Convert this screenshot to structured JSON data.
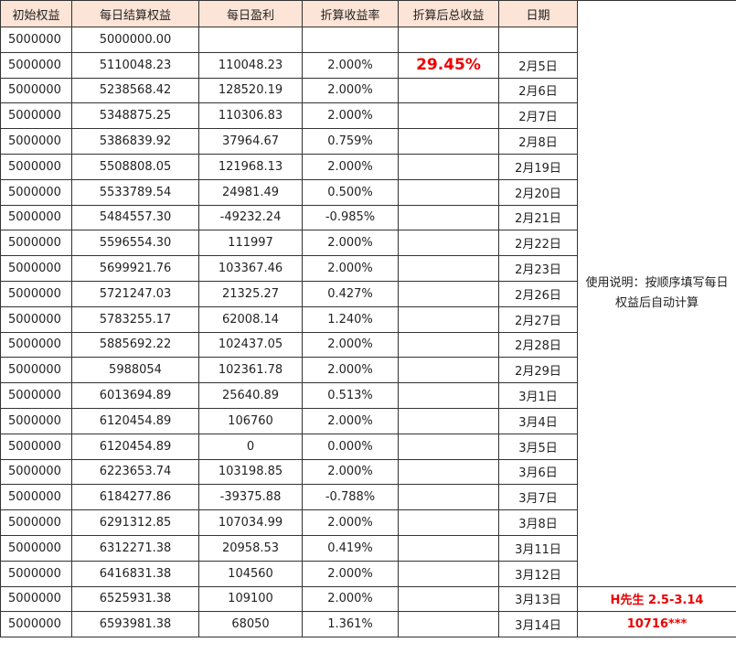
{
  "header": {
    "columns": [
      "初始权益",
      "每日结算权益",
      "每日盈利",
      "折算收益率",
      "折算后总收益",
      "日期"
    ]
  },
  "table": {
    "rows": [
      [
        "5000000",
        "5000000.00",
        null,
        null,
        null,
        null
      ],
      [
        "5000000",
        "5110048.23",
        "110048.23",
        "2.000%",
        "29.45%",
        "2月5日"
      ],
      [
        "5000000",
        "5238568.42",
        "128520.19",
        "2.000%",
        null,
        "2月6日"
      ],
      [
        "5000000",
        "5348875.25",
        "110306.83",
        "2.000%",
        null,
        "2月7日"
      ],
      [
        "5000000",
        "5386839.92",
        "37964.67",
        "0.759%",
        null,
        "2月8日"
      ],
      [
        "5000000",
        "5508808.05",
        "121968.13",
        "2.000%",
        null,
        "2月19日"
      ],
      [
        "5000000",
        "5533789.54",
        "24981.49",
        "0.500%",
        null,
        "2月20日"
      ],
      [
        "5000000",
        "5484557.30",
        "-49232.24",
        "-0.985%",
        null,
        "2月21日"
      ],
      [
        "5000000",
        "5596554.30",
        "111997",
        "2.000%",
        null,
        "2月22日"
      ],
      [
        "5000000",
        "5699921.76",
        "103367.46",
        "2.000%",
        null,
        "2月23日"
      ],
      [
        "5000000",
        "5721247.03",
        "21325.27",
        "0.427%",
        null,
        "2月26日"
      ],
      [
        "5000000",
        "5783255.17",
        "62008.14",
        "1.240%",
        null,
        "2月27日"
      ],
      [
        "5000000",
        "5885692.22",
        "102437.05",
        "2.000%",
        null,
        "2月28日"
      ],
      [
        "5000000",
        "5988054",
        "102361.78",
        "2.000%",
        null,
        "2月29日"
      ],
      [
        "5000000",
        "6013694.89",
        "25640.89",
        "0.513%",
        null,
        "3月1日"
      ],
      [
        "5000000",
        "6120454.89",
        "106760",
        "2.000%",
        null,
        "3月4日"
      ],
      [
        "5000000",
        "6120454.89",
        "0",
        "0.000%",
        null,
        "3月5日"
      ],
      [
        "5000000",
        "6223653.74",
        "103198.85",
        "2.000%",
        null,
        "3月6日"
      ],
      [
        "5000000",
        "6184277.86",
        "-39375.88",
        "-0.788%",
        null,
        "3月7日"
      ],
      [
        "5000000",
        "6291312.85",
        "107034.99",
        "2.000%",
        null,
        "3月8日"
      ],
      [
        "5000000",
        "6312271.38",
        "20958.53",
        "0.419%",
        null,
        "3月11日"
      ],
      [
        "5000000",
        "6416831.38",
        "104560",
        "2.000%",
        null,
        "3月12日"
      ],
      [
        "5000000",
        "6525931.38",
        "109100",
        "2.000%",
        null,
        "3月13日"
      ],
      [
        "5000000",
        "6593981.38",
        "68050",
        "1.361%",
        null,
        "3月14日"
      ]
    ]
  },
  "side": {
    "note": "使用说明：按顺序填写每日权益后自动计算",
    "author": "H先生  2.5-3.14",
    "code": "10716***"
  }
}
